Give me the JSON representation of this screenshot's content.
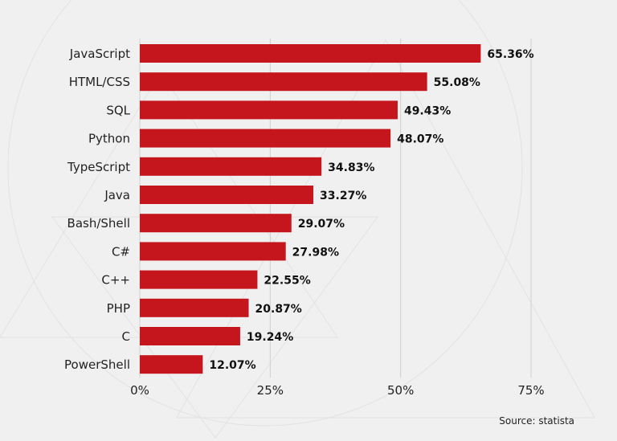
{
  "chart_data": {
    "type": "bar",
    "orientation": "horizontal",
    "categories": [
      "JavaScript",
      "HTML/CSS",
      "SQL",
      "Python",
      "TypeScript",
      "Java",
      "Bash/Shell",
      "C#",
      "C++",
      "PHP",
      "C",
      "PowerShell"
    ],
    "values": [
      65.36,
      55.08,
      49.43,
      48.07,
      34.83,
      33.27,
      29.07,
      27.98,
      22.55,
      20.87,
      19.24,
      12.07
    ],
    "value_labels": [
      "65.36%",
      "55.08%",
      "49.43%",
      "48.07%",
      "34.83%",
      "33.27%",
      "29.07%",
      "27.98%",
      "22.55%",
      "20.87%",
      "19.24%",
      "12.07%"
    ],
    "x_ticks": [
      0,
      25,
      50,
      75
    ],
    "x_tick_labels": [
      "0%",
      "25%",
      "50%",
      "75%"
    ],
    "xlim": [
      0,
      75
    ],
    "grid": true,
    "bar_color": "#c4161c",
    "background_color": "#f0f0f0",
    "source": "Source: statista"
  }
}
